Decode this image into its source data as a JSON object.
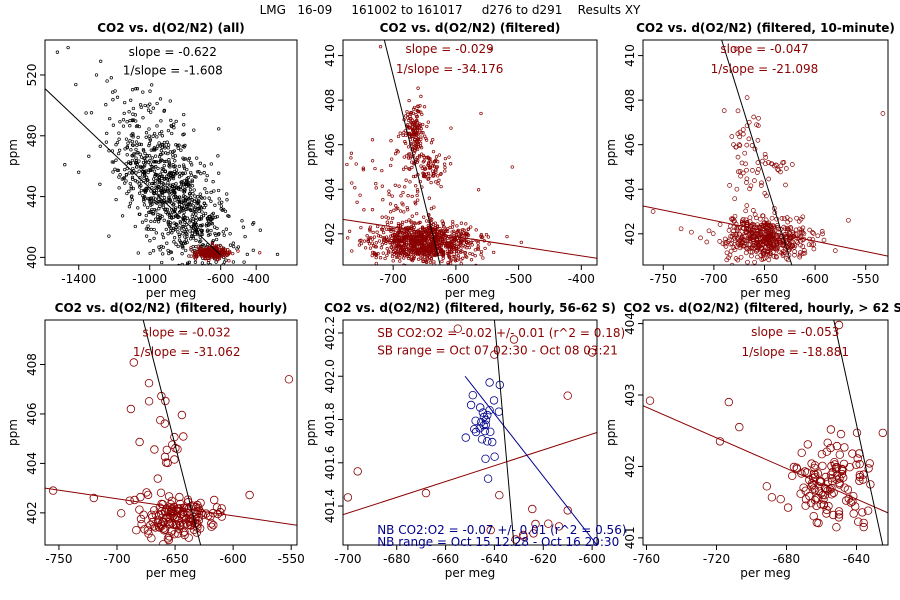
{
  "suptitle": "LMG   16-09     161002 to 161017     d276 to d291    Results XY",
  "colors": {
    "black": "#000000",
    "red": "#8b0000",
    "blue": "#00008b",
    "redLine": "#8b0000"
  },
  "chart_data": [
    {
      "type": "scatter",
      "title": "CO2 vs. d(O2/N2) (all)",
      "xlabel": "per meg",
      "ylabel": "ppm",
      "xlim": [
        -1590,
        -170
      ],
      "ylim": [
        395,
        543
      ],
      "xticks": [
        -1400,
        -1000,
        -600,
        -400
      ],
      "yticks": [
        400,
        440,
        480,
        520
      ],
      "annotations": [
        {
          "text": "slope = -0.622",
          "x": -870,
          "y": 535,
          "color": "black"
        },
        {
          "text": "1/slope = -1.608",
          "x": -870,
          "y": 523,
          "color": "black"
        }
      ],
      "lines": [
        {
          "x": [
            -1590,
            -600
          ],
          "y": [
            511,
            401.5
          ],
          "color": "black"
        }
      ],
      "clouds": [
        {
          "cx": -870,
          "cy": 440,
          "sx": 170,
          "sy": 22,
          "n": 1000,
          "color": "black",
          "size": 1.3,
          "filled": true,
          "seed": 11,
          "trend": -0.11
        },
        {
          "cx": -650,
          "cy": 403,
          "sx": 45,
          "sy": 2.0,
          "n": 300,
          "color": "red",
          "size": 1.3,
          "filled": true,
          "seed": 12,
          "trend": 0
        }
      ],
      "points": [
        {
          "x": -1520,
          "y": 535,
          "color": "black"
        },
        {
          "x": -1460,
          "y": 538,
          "color": "black"
        },
        {
          "x": -1300,
          "y": 520,
          "color": "black"
        },
        {
          "x": -1240,
          "y": 516,
          "color": "black"
        },
        {
          "x": -1400,
          "y": 456,
          "color": "black"
        },
        {
          "x": -1210,
          "y": 470,
          "color": "black"
        },
        {
          "x": -450,
          "y": 402,
          "color": "black"
        },
        {
          "x": -280,
          "y": 402,
          "color": "black"
        },
        {
          "x": -380,
          "y": 403,
          "color": "red"
        },
        {
          "x": -560,
          "y": 405,
          "color": "red"
        }
      ]
    },
    {
      "type": "scatter",
      "title": "CO2 vs. d(O2/N2) (filtered)",
      "xlabel": "per meg",
      "ylabel": "ppm",
      "xlim": [
        -780,
        -375
      ],
      "ylim": [
        400.6,
        410.7
      ],
      "xticks": [
        -700,
        -600,
        -500,
        -400
      ],
      "yticks": [
        402,
        404,
        406,
        408,
        410
      ],
      "annotations": [
        {
          "text": "slope = -0.029",
          "x": -610,
          "y": 410.3,
          "color": "red"
        },
        {
          "text": "1/slope = -34.176",
          "x": -610,
          "y": 409.4,
          "color": "red"
        }
      ],
      "lines": [
        {
          "x": [
            -780,
            -375
          ],
          "y": [
            402.65,
            400.9
          ],
          "color": "red"
        },
        {
          "x": [
            -715,
            -625
          ],
          "y": [
            410.8,
            400.6
          ],
          "color": "black"
        }
      ],
      "clouds": [
        {
          "cx": -650,
          "cy": 401.6,
          "sx": 42,
          "sy": 0.45,
          "n": 950,
          "color": "red",
          "size": 1.3,
          "filled": false,
          "seed": 21,
          "trend": 0
        },
        {
          "cx": -665,
          "cy": 406.5,
          "sx": 8,
          "sy": 0.8,
          "n": 160,
          "color": "red",
          "size": 1.3,
          "filled": false,
          "seed": 22,
          "trend": 0
        },
        {
          "cx": -640,
          "cy": 404.9,
          "sx": 12,
          "sy": 0.35,
          "n": 60,
          "color": "red",
          "size": 1.3,
          "filled": false,
          "seed": 23,
          "trend": 0
        },
        {
          "cx": -690,
          "cy": 404.0,
          "sx": 40,
          "sy": 1.3,
          "n": 110,
          "color": "red",
          "size": 1.3,
          "filled": false,
          "seed": 24,
          "trend": 0
        }
      ],
      "points": [
        {
          "x": -720,
          "y": 410.4,
          "color": "red"
        },
        {
          "x": -545,
          "y": 410.3,
          "color": "red"
        },
        {
          "x": -560,
          "y": 407.4,
          "color": "red"
        },
        {
          "x": -510,
          "y": 405.0,
          "color": "red"
        }
      ]
    },
    {
      "type": "scatter",
      "title": "CO2 vs. d(O2/N2) (filtered, 10-minute)",
      "xlabel": "per meg",
      "ylabel": "ppm",
      "xlim": [
        -770,
        -528
      ],
      "ylim": [
        400.6,
        410.7
      ],
      "xticks": [
        -750,
        -700,
        -650,
        -600,
        -550
      ],
      "yticks": [
        402,
        404,
        406,
        408,
        410
      ],
      "annotations": [
        {
          "text": "slope = -0.047",
          "x": -650,
          "y": 410.3,
          "color": "red"
        },
        {
          "text": "1/slope = -21.098",
          "x": -650,
          "y": 409.4,
          "color": "red"
        }
      ],
      "lines": [
        {
          "x": [
            -770,
            -528
          ],
          "y": [
            403.25,
            401.0
          ],
          "color": "red"
        },
        {
          "x": [
            -693,
            -623
          ],
          "y": [
            410.8,
            400.6
          ],
          "color": "black"
        }
      ],
      "clouds": [
        {
          "cx": -648,
          "cy": 401.8,
          "sx": 22,
          "sy": 0.45,
          "n": 480,
          "color": "red",
          "size": 2.0,
          "filled": false,
          "seed": 31,
          "trend": 0
        },
        {
          "cx": -668,
          "cy": 405.5,
          "sx": 10,
          "sy": 1.2,
          "n": 55,
          "color": "red",
          "size": 2.0,
          "filled": false,
          "seed": 32,
          "trend": 0
        },
        {
          "cx": -640,
          "cy": 405.0,
          "sx": 8,
          "sy": 0.4,
          "n": 18,
          "color": "red",
          "size": 2.0,
          "filled": false,
          "seed": 33,
          "trend": 0
        }
      ],
      "points": [
        {
          "x": -533,
          "y": 407.4,
          "color": "red"
        },
        {
          "x": -678,
          "y": 410.3,
          "color": "red"
        },
        {
          "x": -760,
          "y": 403.0,
          "color": "red"
        }
      ]
    },
    {
      "type": "scatter",
      "title": "CO2 vs. d(O2/N2) (filtered, hourly)",
      "xlabel": "per meg",
      "ylabel": "ppm",
      "xlim": [
        -762,
        -545
      ],
      "ylim": [
        400.7,
        409.8
      ],
      "xticks": [
        -750,
        -700,
        -650,
        -600,
        -550
      ],
      "yticks": [
        402,
        404,
        406,
        408
      ],
      "annotations": [
        {
          "text": "slope = -0.032",
          "x": -640,
          "y": 409.3,
          "color": "red"
        },
        {
          "text": "1/slope = -31.062",
          "x": -640,
          "y": 408.5,
          "color": "red"
        }
      ],
      "lines": [
        {
          "x": [
            -762,
            -545
          ],
          "y": [
            403.0,
            401.5
          ],
          "color": "red"
        },
        {
          "x": [
            -678,
            -628
          ],
          "y": [
            409.9,
            400.7
          ],
          "color": "black"
        }
      ],
      "clouds": [
        {
          "cx": -648,
          "cy": 401.8,
          "sx": 17,
          "sy": 0.45,
          "n": 150,
          "color": "red",
          "size": 3.8,
          "filled": false,
          "seed": 41,
          "trend": 0
        },
        {
          "cx": -660,
          "cy": 404.5,
          "sx": 14,
          "sy": 1.3,
          "n": 25,
          "color": "red",
          "size": 3.8,
          "filled": false,
          "seed": 42,
          "trend": 0
        }
      ],
      "points": [
        {
          "x": -755,
          "y": 402.9,
          "color": "red"
        },
        {
          "x": -552,
          "y": 407.4,
          "color": "red"
        },
        {
          "x": -688,
          "y": 406.2,
          "color": "red"
        },
        {
          "x": -720,
          "y": 402.6,
          "color": "red"
        }
      ]
    },
    {
      "type": "scatter",
      "title": "CO2 vs. d(O2/N2) (filtered, hourly, 56-62 S)",
      "xlabel": "per meg",
      "ylabel": "ppm",
      "xlim": [
        -702,
        -598
      ],
      "ylim": [
        401.22,
        402.26
      ],
      "xticks": [
        -700,
        -680,
        -660,
        -640,
        -620,
        -600
      ],
      "yticks": [
        401.4,
        401.6,
        401.8,
        402.0,
        402.2
      ],
      "annotations": [
        {
          "text": "SB CO2:O2 = -0.02 +/- 0.01 (r^2 = 0.18)",
          "x": -688,
          "y": 402.2,
          "color": "red",
          "anchor": "start"
        },
        {
          "text": "SB range = Oct 07 02:30 - Oct 08 03:21",
          "x": -688,
          "y": 402.12,
          "color": "red",
          "anchor": "start"
        },
        {
          "text": "NB CO2:O2 = -0.07 +/- 0.01 (r^2 = 0.56)",
          "x": -688,
          "y": 401.29,
          "color": "blue",
          "anchor": "start"
        },
        {
          "text": "NB range = Oct 15 12:28 - Oct 16 20:30",
          "x": -688,
          "y": 401.235,
          "color": "blue",
          "anchor": "start"
        }
      ],
      "lines": [
        {
          "x": [
            -702,
            -598
          ],
          "y": [
            401.36,
            401.74
          ],
          "color": "red"
        },
        {
          "x": [
            -652,
            -598
          ],
          "y": [
            402.0,
            401.22
          ],
          "color": "blue"
        },
        {
          "x": [
            -640,
            -632
          ],
          "y": [
            402.26,
            401.22
          ],
          "color": "black"
        }
      ],
      "clouds": [
        {
          "cx": -643,
          "cy": 401.8,
          "sx": 5,
          "sy": 0.1,
          "n": 28,
          "color": "blue",
          "size": 3.8,
          "filled": false,
          "seed": 51,
          "trend": 0
        },
        {
          "cx": -625,
          "cy": 401.3,
          "sx": 10,
          "sy": 0.05,
          "n": 10,
          "color": "red",
          "size": 3.8,
          "filled": false,
          "seed": 52,
          "trend": 0
        }
      ],
      "points": [
        {
          "x": -700,
          "y": 401.44,
          "color": "red"
        },
        {
          "x": -696,
          "y": 401.56,
          "color": "red"
        },
        {
          "x": -668,
          "y": 401.46,
          "color": "red"
        },
        {
          "x": -655,
          "y": 402.22,
          "color": "red"
        },
        {
          "x": -640,
          "y": 402.1,
          "color": "red"
        },
        {
          "x": -610,
          "y": 401.91,
          "color": "red"
        },
        {
          "x": -600,
          "y": 402.11,
          "color": "red"
        },
        {
          "x": -632,
          "y": 402.17,
          "color": "red"
        },
        {
          "x": -638,
          "y": 401.45,
          "color": "red"
        },
        {
          "x": -610,
          "y": 401.38,
          "color": "red"
        }
      ]
    },
    {
      "type": "scatter",
      "title": "CO2 vs. d(O2/N2) (filtered, hourly, > 62 S)",
      "xlabel": "per meg",
      "ylabel": "ppm",
      "xlim": [
        -762,
        -622
      ],
      "ylim": [
        400.9,
        404.05
      ],
      "xticks": [
        -760,
        -720,
        -680,
        -640
      ],
      "yticks": [
        401.0,
        402.0,
        403.0,
        404.0
      ],
      "annotations": [
        {
          "text": "slope = -0.053",
          "x": -675,
          "y": 403.88,
          "color": "red"
        },
        {
          "text": "1/slope = -18.881",
          "x": -675,
          "y": 403.6,
          "color": "red"
        }
      ],
      "lines": [
        {
          "x": [
            -762,
            -622
          ],
          "y": [
            402.85,
            401.35
          ],
          "color": "red"
        },
        {
          "x": [
            -653,
            -625
          ],
          "y": [
            404.05,
            400.9
          ],
          "color": "black"
        }
      ],
      "clouds": [
        {
          "cx": -656,
          "cy": 401.75,
          "sx": 13,
          "sy": 0.3,
          "n": 130,
          "color": "red",
          "size": 3.8,
          "filled": false,
          "seed": 61,
          "trend": 0
        }
      ],
      "points": [
        {
          "x": -758,
          "y": 402.92,
          "color": "red"
        },
        {
          "x": -713,
          "y": 402.9,
          "color": "red"
        },
        {
          "x": -718,
          "y": 402.35,
          "color": "red"
        },
        {
          "x": -707,
          "y": 402.55,
          "color": "red"
        },
        {
          "x": -650,
          "y": 403.98,
          "color": "red"
        },
        {
          "x": -625,
          "y": 402.47,
          "color": "red"
        }
      ]
    }
  ]
}
